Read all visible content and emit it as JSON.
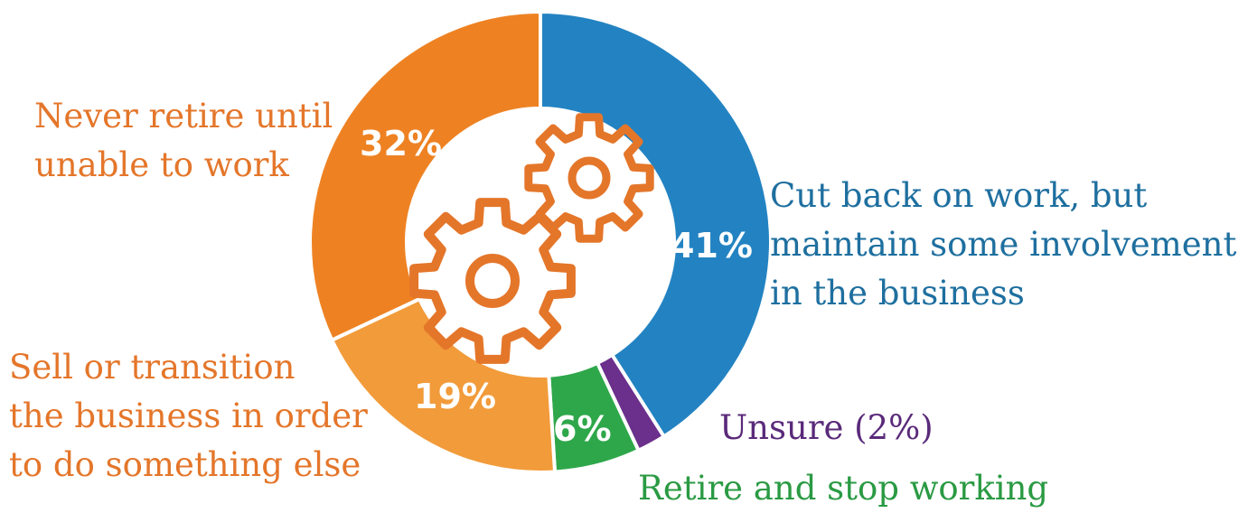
{
  "chart_data": {
    "type": "pie",
    "style": "donut",
    "slices": [
      {
        "key": "cut_back",
        "value": 41,
        "percent_label": "41%",
        "label_lines": [
          "Cut back on work, but",
          "maintain some involvement",
          "in the business"
        ],
        "color": "#2383c2"
      },
      {
        "key": "unsure",
        "value": 2,
        "percent_label": "",
        "label_lines": [
          "Unsure (2%)"
        ],
        "color": "#6b2f8c"
      },
      {
        "key": "retire",
        "value": 6,
        "percent_label": "6%",
        "label_lines": [
          "Retire and stop working"
        ],
        "color": "#2ea74a"
      },
      {
        "key": "sell",
        "value": 19,
        "percent_label": "19%",
        "label_lines": [
          "Sell or transition",
          "the business in order",
          "to do something else"
        ],
        "color": "#f29b3a"
      },
      {
        "key": "never",
        "value": 32,
        "percent_label": "32%",
        "label_lines": [
          "Never retire until",
          "unable to work"
        ],
        "color": "#ee8223"
      }
    ],
    "label_colors": {
      "cut_back": "#1e6f9f",
      "unsure": "#5a2a7a",
      "retire": "#2a9a43",
      "sell": "#e4762a",
      "never": "#e4762a"
    },
    "gear_color": "#e4762a"
  }
}
